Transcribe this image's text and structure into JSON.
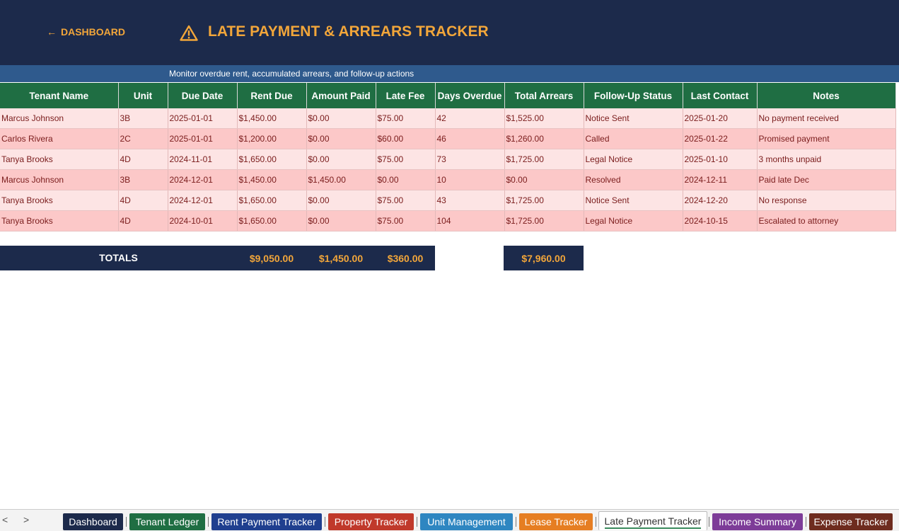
{
  "header": {
    "back_link": "DASHBOARD",
    "back_arrow": "←",
    "title": "LATE PAYMENT & ARREARS TRACKER",
    "title_icon": "warning-icon",
    "subtitle": "Monitor overdue rent, accumulated arrears, and follow-up actions",
    "colors": {
      "navy": "#1c2a4b",
      "accent": "#f2a63a",
      "subtitle_bg": "#2f5a8d",
      "table_header": "#1f6e43",
      "row_light": "#fde4e4",
      "row_dark": "#fcc8c8",
      "row_text": "#7a1c1c"
    }
  },
  "table": {
    "columns": [
      "Tenant Name",
      "Unit",
      "Due Date",
      "Rent Due",
      "Amount Paid",
      "Late Fee",
      "Days Overdue",
      "Total Arrears",
      "Follow-Up Status",
      "Last Contact",
      "Notes"
    ],
    "rows": [
      [
        "Marcus Johnson",
        "3B",
        "2025-01-01",
        "$1,450.00",
        "$0.00",
        "$75.00",
        "42",
        "$1,525.00",
        "Notice Sent",
        "2025-01-20",
        "No payment received"
      ],
      [
        "Carlos Rivera",
        "2C",
        "2025-01-01",
        "$1,200.00",
        "$0.00",
        "$60.00",
        "46",
        "$1,260.00",
        "Called",
        "2025-01-22",
        "Promised payment"
      ],
      [
        "Tanya Brooks",
        "4D",
        "2024-11-01",
        "$1,650.00",
        "$0.00",
        "$75.00",
        "73",
        "$1,725.00",
        "Legal Notice",
        "2025-01-10",
        "3 months unpaid"
      ],
      [
        "Marcus Johnson",
        "3B",
        "2024-12-01",
        "$1,450.00",
        "$1,450.00",
        "$0.00",
        "10",
        "$0.00",
        "Resolved",
        "2024-12-11",
        "Paid late Dec"
      ],
      [
        "Tanya Brooks",
        "4D",
        "2024-12-01",
        "$1,650.00",
        "$0.00",
        "$75.00",
        "43",
        "$1,725.00",
        "Notice Sent",
        "2024-12-20",
        "No response"
      ],
      [
        "Tanya Brooks",
        "4D",
        "2024-10-01",
        "$1,650.00",
        "$0.00",
        "$75.00",
        "104",
        "$1,725.00",
        "Legal Notice",
        "2024-10-15",
        "Escalated to attorney"
      ]
    ]
  },
  "totals": {
    "label": "TOTALS",
    "rent_due": "$9,050.00",
    "amount_paid": "$1,450.00",
    "late_fee": "$360.00",
    "total_arrears": "$7,960.00"
  },
  "sheet_tabs": {
    "prev": "<",
    "next": ">",
    "tabs": [
      {
        "label": "Dashboard",
        "color": "#1c2a4b"
      },
      {
        "label": "Tenant Ledger",
        "color": "#1f6e43"
      },
      {
        "label": "Rent Payment Tracker",
        "color": "#1f3f8f"
      },
      {
        "label": "Property Tracker",
        "color": "#c0392b"
      },
      {
        "label": "Unit Management",
        "color": "#2e86c1"
      },
      {
        "label": "Lease Tracker",
        "color": "#e67e22"
      },
      {
        "label": "Late Payment Tracker",
        "color": "#ffffff",
        "active": true
      },
      {
        "label": "Income Summary",
        "color": "#7d3c98"
      },
      {
        "label": "Expense Tracker",
        "color": "#6e2c1f"
      }
    ]
  }
}
